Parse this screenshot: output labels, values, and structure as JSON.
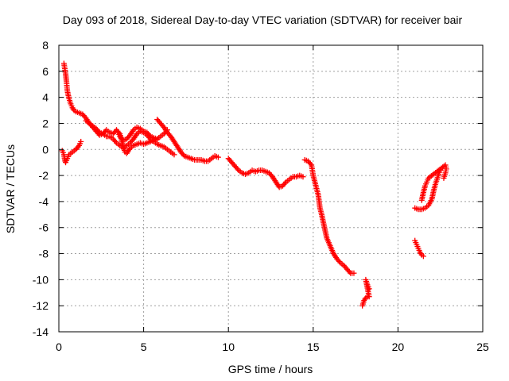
{
  "chart_data": {
    "type": "scatter",
    "title": "Day 093 of 2018, Sidereal Day-to-day VTEC variation (SDTVAR) for receiver bair",
    "xlabel": "GPS time / hours",
    "ylabel": "SDTVAR / TECUs",
    "xlim": [
      0,
      25
    ],
    "ylim": [
      -14,
      8
    ],
    "xticks": [
      0,
      5,
      10,
      15,
      20,
      25
    ],
    "yticks": [
      -14,
      -12,
      -10,
      -8,
      -6,
      -4,
      -2,
      0,
      2,
      4,
      6,
      8
    ],
    "grid": true,
    "marker": "+",
    "color": "#ff0000",
    "segments": [
      {
        "name": "arc-1a",
        "points": [
          [
            0.3,
            6.6
          ],
          [
            0.35,
            6.2
          ],
          [
            0.4,
            5.8
          ],
          [
            0.45,
            5.2
          ],
          [
            0.5,
            4.5
          ],
          [
            0.6,
            3.9
          ],
          [
            0.7,
            3.5
          ],
          [
            0.8,
            3.2
          ],
          [
            0.9,
            3.0
          ],
          [
            1.0,
            2.9
          ],
          [
            1.2,
            2.8
          ],
          [
            1.4,
            2.7
          ],
          [
            1.6,
            2.4
          ],
          [
            1.8,
            2.0
          ],
          [
            2.0,
            1.8
          ],
          [
            2.2,
            1.6
          ],
          [
            2.4,
            1.3
          ],
          [
            2.6,
            1.2
          ],
          [
            2.8,
            1.0
          ],
          [
            3.0,
            1.0
          ],
          [
            3.2,
            0.8
          ],
          [
            3.4,
            0.5
          ],
          [
            3.6,
            0.3
          ],
          [
            3.8,
            0.1
          ],
          [
            4.0,
            0.3
          ],
          [
            4.2,
            0.5
          ],
          [
            4.4,
            0.8
          ],
          [
            4.6,
            1.2
          ],
          [
            4.8,
            1.4
          ],
          [
            5.0,
            1.3
          ],
          [
            5.2,
            1.1
          ],
          [
            5.4,
            0.8
          ],
          [
            5.6,
            0.6
          ],
          [
            5.8,
            0.4
          ],
          [
            6.0,
            0.3
          ],
          [
            6.2,
            0.2
          ],
          [
            6.4,
            0.0
          ],
          [
            6.6,
            -0.2
          ],
          [
            6.8,
            -0.4
          ]
        ]
      },
      {
        "name": "arc-1b",
        "points": [
          [
            0.2,
            -0.1
          ],
          [
            0.3,
            -0.4
          ],
          [
            0.35,
            -0.8
          ],
          [
            0.4,
            -1.0
          ],
          [
            0.5,
            -0.7
          ],
          [
            0.6,
            -0.4
          ],
          [
            0.8,
            -0.2
          ],
          [
            1.0,
            0.0
          ],
          [
            1.2,
            0.3
          ],
          [
            1.3,
            0.6
          ]
        ]
      },
      {
        "name": "arc-1c",
        "points": [
          [
            1.6,
            2.2
          ],
          [
            1.8,
            2.0
          ],
          [
            2.0,
            1.7
          ],
          [
            2.2,
            1.4
          ],
          [
            2.4,
            1.1
          ],
          [
            2.6,
            1.2
          ],
          [
            2.8,
            1.5
          ],
          [
            3.0,
            1.3
          ],
          [
            3.2,
            1.2
          ],
          [
            3.4,
            1.5
          ],
          [
            3.6,
            1.2
          ],
          [
            3.8,
            0.2
          ],
          [
            3.9,
            -0.2
          ],
          [
            4.0,
            -0.3
          ],
          [
            4.2,
            0.1
          ],
          [
            4.4,
            0.3
          ],
          [
            4.6,
            0.4
          ],
          [
            4.8,
            0.5
          ],
          [
            5.0,
            0.4
          ],
          [
            5.2,
            0.5
          ],
          [
            5.4,
            0.6
          ],
          [
            5.6,
            0.7
          ],
          [
            5.8,
            0.8
          ],
          [
            6.0,
            1.0
          ],
          [
            6.2,
            1.2
          ],
          [
            6.4,
            1.5
          ]
        ]
      },
      {
        "name": "arc-1d",
        "points": [
          [
            3.5,
            1.3
          ],
          [
            3.6,
            1.0
          ],
          [
            3.8,
            0.7
          ],
          [
            4.0,
            0.8
          ],
          [
            4.2,
            1.1
          ],
          [
            4.4,
            1.5
          ],
          [
            4.6,
            1.7
          ],
          [
            4.8,
            1.6
          ],
          [
            5.0,
            1.4
          ],
          [
            5.2,
            1.3
          ],
          [
            5.4,
            1.0
          ],
          [
            5.6,
            0.9
          ],
          [
            5.8,
            0.8
          ]
        ]
      },
      {
        "name": "arc-1e",
        "points": [
          [
            5.8,
            2.3
          ],
          [
            6.0,
            2.0
          ],
          [
            6.2,
            1.7
          ],
          [
            6.4,
            1.3
          ],
          [
            6.6,
            1.0
          ],
          [
            6.8,
            0.6
          ],
          [
            7.0,
            0.2
          ],
          [
            7.2,
            -0.2
          ],
          [
            7.4,
            -0.5
          ],
          [
            7.6,
            -0.6
          ],
          [
            7.8,
            -0.7
          ],
          [
            8.0,
            -0.8
          ],
          [
            8.2,
            -0.8
          ],
          [
            8.4,
            -0.8
          ],
          [
            8.6,
            -0.9
          ],
          [
            8.8,
            -0.9
          ],
          [
            9.0,
            -0.7
          ],
          [
            9.2,
            -0.5
          ],
          [
            9.4,
            -0.6
          ]
        ]
      },
      {
        "name": "arc-2",
        "points": [
          [
            10.0,
            -0.7
          ],
          [
            10.2,
            -1.0
          ],
          [
            10.4,
            -1.3
          ],
          [
            10.6,
            -1.6
          ],
          [
            10.8,
            -1.8
          ],
          [
            11.0,
            -1.9
          ],
          [
            11.2,
            -1.8
          ],
          [
            11.4,
            -1.6
          ],
          [
            11.6,
            -1.7
          ],
          [
            11.8,
            -1.6
          ],
          [
            12.0,
            -1.6
          ],
          [
            12.2,
            -1.7
          ],
          [
            12.4,
            -1.8
          ],
          [
            12.6,
            -2.1
          ],
          [
            12.8,
            -2.5
          ],
          [
            13.0,
            -2.9
          ],
          [
            13.2,
            -2.8
          ],
          [
            13.4,
            -2.5
          ],
          [
            13.6,
            -2.3
          ],
          [
            13.8,
            -2.1
          ],
          [
            14.0,
            -2.1
          ],
          [
            14.2,
            -2.0
          ],
          [
            14.4,
            -2.1
          ]
        ]
      },
      {
        "name": "arc-3",
        "points": [
          [
            14.5,
            -0.8
          ],
          [
            14.7,
            -0.9
          ],
          [
            14.9,
            -1.2
          ],
          [
            15.0,
            -2.0
          ],
          [
            15.1,
            -2.5
          ],
          [
            15.2,
            -3.0
          ],
          [
            15.3,
            -3.5
          ],
          [
            15.4,
            -4.5
          ],
          [
            15.5,
            -5.0
          ],
          [
            15.6,
            -5.6
          ],
          [
            15.7,
            -6.2
          ],
          [
            15.8,
            -6.8
          ],
          [
            16.0,
            -7.4
          ],
          [
            16.2,
            -8.0
          ],
          [
            16.4,
            -8.4
          ],
          [
            16.6,
            -8.7
          ],
          [
            16.8,
            -8.9
          ],
          [
            17.0,
            -9.2
          ],
          [
            17.2,
            -9.5
          ],
          [
            17.4,
            -9.5
          ]
        ]
      },
      {
        "name": "arc-4",
        "points": [
          [
            17.9,
            -12.0
          ],
          [
            18.0,
            -11.6
          ],
          [
            18.1,
            -11.4
          ],
          [
            18.2,
            -11.3
          ],
          [
            18.3,
            -11.3
          ],
          [
            18.1,
            -10.0
          ],
          [
            18.2,
            -10.4
          ],
          [
            18.3,
            -10.7
          ]
        ]
      },
      {
        "name": "arc-5",
        "points": [
          [
            21.0,
            -7.0
          ],
          [
            21.1,
            -7.3
          ],
          [
            21.2,
            -7.6
          ],
          [
            21.3,
            -7.9
          ],
          [
            21.4,
            -8.1
          ],
          [
            21.5,
            -8.2
          ],
          [
            21.0,
            -4.5
          ],
          [
            21.2,
            -4.6
          ],
          [
            21.4,
            -4.6
          ],
          [
            21.6,
            -4.5
          ],
          [
            21.8,
            -4.3
          ],
          [
            22.0,
            -3.8
          ],
          [
            22.1,
            -3.2
          ],
          [
            22.2,
            -2.7
          ],
          [
            22.3,
            -2.3
          ],
          [
            22.4,
            -1.9
          ],
          [
            22.5,
            -1.6
          ],
          [
            21.4,
            -3.9
          ],
          [
            21.5,
            -3.3
          ],
          [
            21.6,
            -2.8
          ],
          [
            21.7,
            -2.5
          ],
          [
            21.8,
            -2.2
          ],
          [
            22.8,
            -1.2
          ],
          [
            22.85,
            -1.5
          ],
          [
            22.8,
            -1.8
          ],
          [
            22.7,
            -2.2
          ]
        ]
      }
    ]
  }
}
